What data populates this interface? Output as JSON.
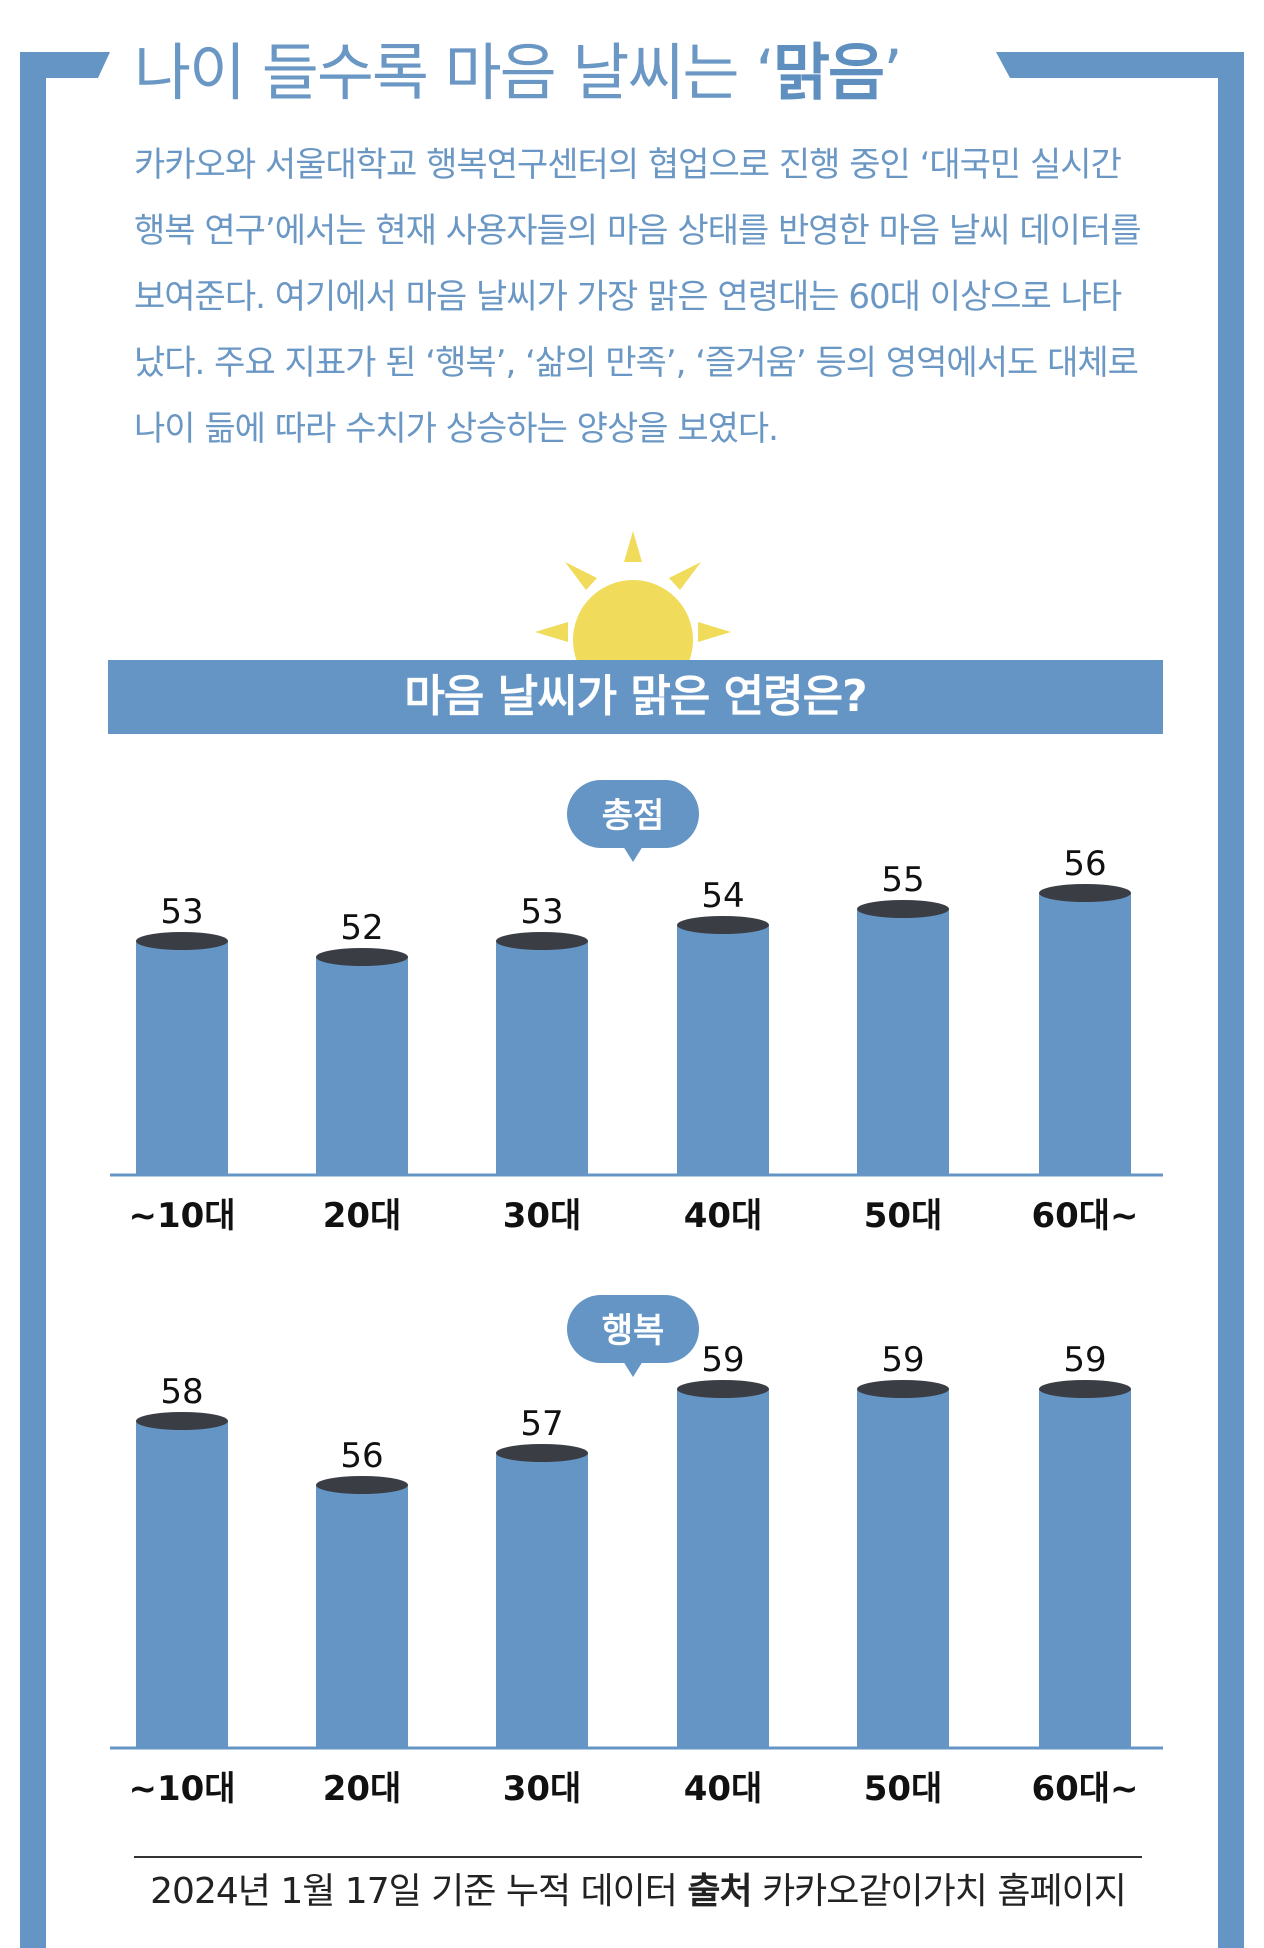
{
  "header": {
    "title_prefix": "나이 들수록 마음 날씨는 ‘",
    "title_emphasis": "맑음",
    "title_suffix": "’"
  },
  "intro": {
    "text": "카카오와 서울대학교 행복연구센터의 협업으로 진행 중인 ‘대국민 실시간 행복 연구’에서는 현재 사용자들의 마음 상태를 반영한 마음 날씨 데이터를 보여준다. 여기에서 마음 날씨가 가장 맑은 연령대는 60대 이상으로 나타났다. 주요 지표가 된 ‘행복’, ‘삶의 만족’, ‘즐거움’ 등의 영역에서도 대체로 나이 듦에 따라 수치가 상승하는 양상을 보였다."
  },
  "banner": {
    "title": "마음 날씨가 맑은 연령은?"
  },
  "colors": {
    "frame": "#6495c4",
    "bar": "#6495c4",
    "bar_top": "#3a3d44",
    "sun": "#f0dc5a",
    "text": "#6a97c4"
  },
  "chart_data": [
    {
      "type": "bar",
      "title": "총점",
      "categories": [
        "~10대",
        "20대",
        "30대",
        "40대",
        "50대",
        "60대~"
      ],
      "values": [
        53,
        52,
        53,
        54,
        55,
        56
      ]
    },
    {
      "type": "bar",
      "title": "행복",
      "categories": [
        "~10대",
        "20대",
        "30대",
        "40대",
        "50대",
        "60대~"
      ],
      "values": [
        58,
        56,
        57,
        59,
        59,
        59
      ]
    }
  ],
  "footer": {
    "date_text": "2024년 1월 17일 기준 누적 데이터",
    "source_label": "출처",
    "source_text": "카카오같이가치 홈페이지"
  }
}
